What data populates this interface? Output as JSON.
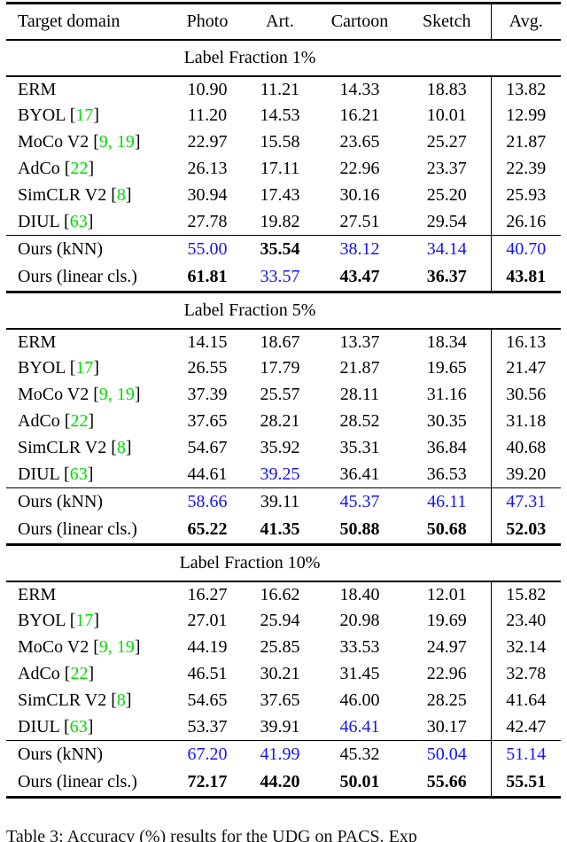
{
  "table": {
    "columns": [
      "Target domain",
      "Photo",
      "Art.",
      "Cartoon",
      "Sketch",
      "Avg."
    ],
    "colors": {
      "value_second_best_blue": "#1414f0",
      "citation_green": "#00dd00",
      "text": "#000000",
      "rules": "#000000"
    },
    "sections": [
      {
        "title": "Label Fraction 1%",
        "baseline_rows": [
          {
            "method": "ERM",
            "cites": [],
            "values": [
              "10.90",
              "11.21",
              "14.33",
              "18.83",
              "13.82"
            ],
            "styles": [
              "n",
              "n",
              "n",
              "n",
              "n"
            ]
          },
          {
            "method": "BYOL",
            "cites": [
              "17"
            ],
            "values": [
              "11.20",
              "14.53",
              "16.21",
              "10.01",
              "12.99"
            ],
            "styles": [
              "n",
              "n",
              "n",
              "n",
              "n"
            ]
          },
          {
            "method": "MoCo V2",
            "cites": [
              "9",
              "19"
            ],
            "values": [
              "22.97",
              "15.58",
              "23.65",
              "25.27",
              "21.87"
            ],
            "styles": [
              "n",
              "n",
              "n",
              "n",
              "n"
            ]
          },
          {
            "method": "AdCo",
            "cites": [
              "22"
            ],
            "values": [
              "26.13",
              "17.11",
              "22.96",
              "23.37",
              "22.39"
            ],
            "styles": [
              "n",
              "n",
              "n",
              "n",
              "n"
            ]
          },
          {
            "method": "SimCLR V2",
            "cites": [
              "8"
            ],
            "values": [
              "30.94",
              "17.43",
              "30.16",
              "25.20",
              "25.93"
            ],
            "styles": [
              "n",
              "n",
              "n",
              "n",
              "n"
            ]
          },
          {
            "method": "DIUL",
            "cites": [
              "63"
            ],
            "values": [
              "27.78",
              "19.82",
              "27.51",
              "29.54",
              "26.16"
            ],
            "styles": [
              "n",
              "n",
              "n",
              "n",
              "n"
            ]
          }
        ],
        "ours_rows": [
          {
            "method": "Ours (kNN)",
            "cites": [],
            "values": [
              "55.00",
              "35.54",
              "38.12",
              "34.14",
              "40.70"
            ],
            "styles": [
              "u",
              "b",
              "u",
              "u",
              "u"
            ]
          },
          {
            "method": "Ours (linear cls.)",
            "cites": [],
            "values": [
              "61.81",
              "33.57",
              "43.47",
              "36.37",
              "43.81"
            ],
            "styles": [
              "b",
              "u",
              "b",
              "b",
              "b"
            ]
          }
        ]
      },
      {
        "title": "Label Fraction 5%",
        "baseline_rows": [
          {
            "method": "ERM",
            "cites": [],
            "values": [
              "14.15",
              "18.67",
              "13.37",
              "18.34",
              "16.13"
            ],
            "styles": [
              "n",
              "n",
              "n",
              "n",
              "n"
            ]
          },
          {
            "method": "BYOL",
            "cites": [
              "17"
            ],
            "values": [
              "26.55",
              "17.79",
              "21.87",
              "19.65",
              "21.47"
            ],
            "styles": [
              "n",
              "n",
              "n",
              "n",
              "n"
            ]
          },
          {
            "method": "MoCo V2",
            "cites": [
              "9",
              "19"
            ],
            "values": [
              "37.39",
              "25.57",
              "28.11",
              "31.16",
              "30.56"
            ],
            "styles": [
              "n",
              "n",
              "n",
              "n",
              "n"
            ]
          },
          {
            "method": "AdCo",
            "cites": [
              "22"
            ],
            "values": [
              "37.65",
              "28.21",
              "28.52",
              "30.35",
              "31.18"
            ],
            "styles": [
              "n",
              "n",
              "n",
              "n",
              "n"
            ]
          },
          {
            "method": "SimCLR V2",
            "cites": [
              "8"
            ],
            "values": [
              "54.67",
              "35.92",
              "35.31",
              "36.84",
              "40.68"
            ],
            "styles": [
              "n",
              "n",
              "n",
              "n",
              "n"
            ]
          },
          {
            "method": "DIUL",
            "cites": [
              "63"
            ],
            "values": [
              "44.61",
              "39.25",
              "36.41",
              "36.53",
              "39.20"
            ],
            "styles": [
              "n",
              "u",
              "n",
              "n",
              "n"
            ]
          }
        ],
        "ours_rows": [
          {
            "method": "Ours (kNN)",
            "cites": [],
            "values": [
              "58.66",
              "39.11",
              "45.37",
              "46.11",
              "47.31"
            ],
            "styles": [
              "u",
              "n",
              "u",
              "u",
              "u"
            ]
          },
          {
            "method": "Ours (linear cls.)",
            "cites": [],
            "values": [
              "65.22",
              "41.35",
              "50.88",
              "50.68",
              "52.03"
            ],
            "styles": [
              "b",
              "b",
              "b",
              "b",
              "b"
            ]
          }
        ]
      },
      {
        "title": "Label Fraction 10%",
        "baseline_rows": [
          {
            "method": "ERM",
            "cites": [],
            "values": [
              "16.27",
              "16.62",
              "18.40",
              "12.01",
              "15.82"
            ],
            "styles": [
              "n",
              "n",
              "n",
              "n",
              "n"
            ]
          },
          {
            "method": "BYOL",
            "cites": [
              "17"
            ],
            "values": [
              "27.01",
              "25.94",
              "20.98",
              "19.69",
              "23.40"
            ],
            "styles": [
              "n",
              "n",
              "n",
              "n",
              "n"
            ]
          },
          {
            "method": "MoCo V2",
            "cites": [
              "9",
              "19"
            ],
            "values": [
              "44.19",
              "25.85",
              "33.53",
              "24.97",
              "32.14"
            ],
            "styles": [
              "n",
              "n",
              "n",
              "n",
              "n"
            ]
          },
          {
            "method": "AdCo",
            "cites": [
              "22"
            ],
            "values": [
              "46.51",
              "30.21",
              "31.45",
              "22.96",
              "32.78"
            ],
            "styles": [
              "n",
              "n",
              "n",
              "n",
              "n"
            ]
          },
          {
            "method": "SimCLR V2",
            "cites": [
              "8"
            ],
            "values": [
              "54.65",
              "37.65",
              "46.00",
              "28.25",
              "41.64"
            ],
            "styles": [
              "n",
              "n",
              "n",
              "n",
              "n"
            ]
          },
          {
            "method": "DIUL",
            "cites": [
              "63"
            ],
            "values": [
              "53.37",
              "39.91",
              "46.41",
              "30.17",
              "42.47"
            ],
            "styles": [
              "n",
              "n",
              "u",
              "n",
              "n"
            ]
          }
        ],
        "ours_rows": [
          {
            "method": "Ours (kNN)",
            "cites": [],
            "values": [
              "67.20",
              "41.99",
              "45.32",
              "50.04",
              "51.14"
            ],
            "styles": [
              "u",
              "u",
              "n",
              "u",
              "u"
            ]
          },
          {
            "method": "Ours (linear cls.)",
            "cites": [],
            "values": [
              "72.17",
              "44.20",
              "50.01",
              "55.66",
              "55.51"
            ],
            "styles": [
              "b",
              "b",
              "b",
              "b",
              "b"
            ]
          }
        ]
      }
    ]
  },
  "caption": {
    "text": "Table 3: Accuracy (%) results for the UDG on PACS. Exp"
  }
}
